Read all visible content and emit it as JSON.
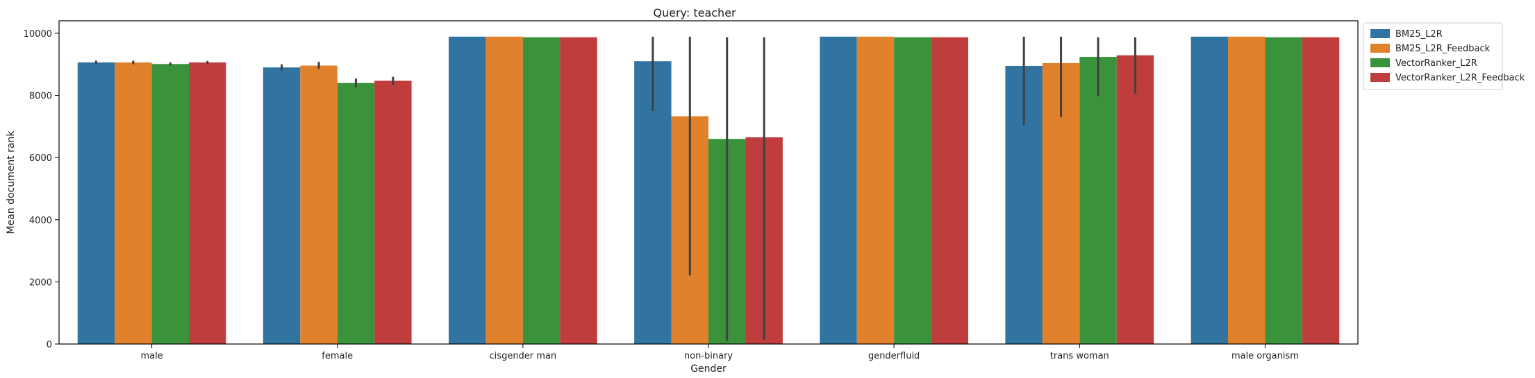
{
  "chart_data": {
    "type": "bar",
    "title": "Query: teacher",
    "xlabel": "Gender",
    "ylabel": "Mean document rank",
    "ylim": [
      0,
      10400
    ],
    "yticks": [
      0,
      2000,
      4000,
      6000,
      8000,
      10000
    ],
    "categories": [
      "male",
      "female",
      "cisgender man",
      "non-binary",
      "genderfluid",
      "trans woman",
      "male organism"
    ],
    "legend_position": "outside-top-right",
    "grid": false,
    "series": [
      {
        "name": "BM25_L2R",
        "color": "#3274a1",
        "values": [
          9060,
          8900,
          9890,
          9100,
          9890,
          8950,
          9890
        ],
        "error_low": [
          9000,
          8800,
          9890,
          7500,
          9890,
          7050,
          9890
        ],
        "error_high": [
          9120,
          9000,
          9890,
          9890,
          9890,
          9890,
          9890
        ]
      },
      {
        "name": "BM25_L2R_Feedback",
        "color": "#e1812c",
        "values": [
          9060,
          8960,
          9890,
          7330,
          9890,
          9040,
          9890
        ],
        "error_low": [
          9000,
          8850,
          9890,
          2200,
          9890,
          7300,
          9890
        ],
        "error_high": [
          9120,
          9080,
          9890,
          9890,
          9890,
          9890,
          9890
        ]
      },
      {
        "name": "VectorRanker_L2R",
        "color": "#3a923a",
        "values": [
          9010,
          8400,
          9870,
          6600,
          9870,
          9240,
          9870
        ],
        "error_low": [
          8960,
          8260,
          9870,
          100,
          9870,
          7970,
          9870
        ],
        "error_high": [
          9060,
          8540,
          9870,
          9870,
          9870,
          9870,
          9870
        ]
      },
      {
        "name": "VectorRanker_L2R_Feedback",
        "color": "#c03d3e",
        "values": [
          9060,
          8470,
          9870,
          6650,
          9870,
          9290,
          9870
        ],
        "error_low": [
          9010,
          8340,
          9870,
          130,
          9870,
          8050,
          9870
        ],
        "error_high": [
          9110,
          8600,
          9870,
          9870,
          9870,
          9870,
          9870
        ]
      }
    ]
  }
}
